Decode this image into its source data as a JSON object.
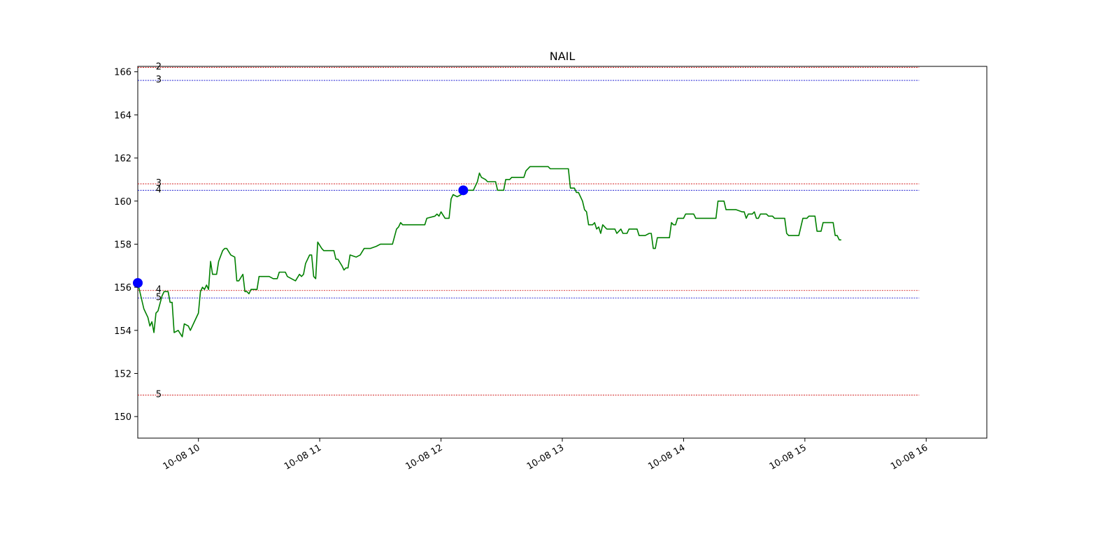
{
  "chart_data": {
    "type": "line",
    "title": "NAIL",
    "xlabel": "",
    "ylabel": "",
    "x_range": [
      "2023-10-08 09:30",
      "2023-10-08 16:30"
    ],
    "ylim": [
      149,
      166.25
    ],
    "y_ticks": [
      "150",
      "152",
      "154",
      "156",
      "158",
      "160",
      "162",
      "164",
      "166"
    ],
    "x_ticks": [
      {
        "t": "10:00",
        "label": "10-08 10"
      },
      {
        "t": "11:00",
        "label": "10-08 11"
      },
      {
        "t": "12:00",
        "label": "10-08 12"
      },
      {
        "t": "13:00",
        "label": "10-08 13"
      },
      {
        "t": "14:00",
        "label": "10-08 14"
      },
      {
        "t": "15:00",
        "label": "10-08 15"
      },
      {
        "t": "16:00",
        "label": "10-08 16"
      }
    ],
    "grid": false,
    "series": [
      {
        "color": "#008000",
        "points": [
          [
            "09:30",
            156.2
          ],
          [
            "09:33",
            155.0
          ],
          [
            "09:35",
            154.6
          ],
          [
            "09:36",
            154.2
          ],
          [
            "09:37",
            154.4
          ],
          [
            "09:38",
            153.9
          ],
          [
            "09:39",
            154.8
          ],
          [
            "09:40",
            154.9
          ],
          [
            "09:42",
            155.6
          ],
          [
            "09:43",
            155.8
          ],
          [
            "09:45",
            155.8
          ],
          [
            "09:46",
            155.3
          ],
          [
            "09:47",
            155.3
          ],
          [
            "09:48",
            153.9
          ],
          [
            "09:50",
            154.0
          ],
          [
            "09:52",
            153.7
          ],
          [
            "09:53",
            154.3
          ],
          [
            "09:55",
            154.2
          ],
          [
            "09:56",
            154.0
          ],
          [
            "09:58",
            154.4
          ],
          [
            "10:00",
            154.8
          ],
          [
            "10:01",
            155.8
          ],
          [
            "10:02",
            156.0
          ],
          [
            "10:03",
            155.9
          ],
          [
            "10:04",
            156.1
          ],
          [
            "10:05",
            155.9
          ],
          [
            "10:06",
            157.2
          ],
          [
            "10:07",
            156.6
          ],
          [
            "10:09",
            156.6
          ],
          [
            "10:10",
            157.2
          ],
          [
            "10:12",
            157.7
          ],
          [
            "10:13",
            157.8
          ],
          [
            "10:14",
            157.8
          ],
          [
            "10:16",
            157.5
          ],
          [
            "10:18",
            157.4
          ],
          [
            "10:19",
            156.3
          ],
          [
            "10:20",
            156.3
          ],
          [
            "10:22",
            156.6
          ],
          [
            "10:23",
            155.8
          ],
          [
            "10:24",
            155.8
          ],
          [
            "10:25",
            155.7
          ],
          [
            "10:26",
            155.9
          ],
          [
            "10:29",
            155.9
          ],
          [
            "10:30",
            156.5
          ],
          [
            "10:35",
            156.5
          ],
          [
            "10:37",
            156.4
          ],
          [
            "10:39",
            156.4
          ],
          [
            "10:40",
            156.7
          ],
          [
            "10:43",
            156.7
          ],
          [
            "10:44",
            156.5
          ],
          [
            "10:46",
            156.4
          ],
          [
            "10:48",
            156.3
          ],
          [
            "10:50",
            156.6
          ],
          [
            "10:51",
            156.5
          ],
          [
            "10:52",
            156.6
          ],
          [
            "10:53",
            157.1
          ],
          [
            "10:55",
            157.5
          ],
          [
            "10:56",
            157.5
          ],
          [
            "10:57",
            156.5
          ],
          [
            "10:58",
            156.4
          ],
          [
            "10:59",
            158.1
          ],
          [
            "11:01",
            157.8
          ],
          [
            "11:02",
            157.7
          ],
          [
            "11:05",
            157.7
          ],
          [
            "11:07",
            157.7
          ],
          [
            "11:08",
            157.3
          ],
          [
            "11:09",
            157.3
          ],
          [
            "11:11",
            157.0
          ],
          [
            "11:12",
            156.8
          ],
          [
            "11:13",
            156.9
          ],
          [
            "11:14",
            156.9
          ],
          [
            "11:15",
            157.5
          ],
          [
            "11:18",
            157.4
          ],
          [
            "11:20",
            157.5
          ],
          [
            "11:22",
            157.8
          ],
          [
            "11:24",
            157.8
          ],
          [
            "11:25",
            157.8
          ],
          [
            "11:28",
            157.9
          ],
          [
            "11:30",
            158.0
          ],
          [
            "11:36",
            158.0
          ],
          [
            "11:38",
            158.7
          ],
          [
            "11:39",
            158.8
          ],
          [
            "11:40",
            159.0
          ],
          [
            "11:41",
            158.9
          ],
          [
            "11:52",
            158.9
          ],
          [
            "11:53",
            159.2
          ],
          [
            "11:57",
            159.3
          ],
          [
            "11:58",
            159.4
          ],
          [
            "11:59",
            159.3
          ],
          [
            "12:00",
            159.5
          ],
          [
            "12:02",
            159.2
          ],
          [
            "12:04",
            159.2
          ],
          [
            "12:05",
            160.1
          ],
          [
            "12:06",
            160.3
          ],
          [
            "12:08",
            160.2
          ],
          [
            "12:10",
            160.3
          ],
          [
            "12:11",
            160.5
          ],
          [
            "12:13",
            160.5
          ],
          [
            "12:14",
            160.5
          ],
          [
            "12:16",
            160.5
          ],
          [
            "12:17",
            160.7
          ],
          [
            "12:18",
            160.9
          ],
          [
            "12:19",
            161.3
          ],
          [
            "12:20",
            161.1
          ],
          [
            "12:22",
            161.0
          ],
          [
            "12:23",
            160.9
          ],
          [
            "12:24",
            160.9
          ],
          [
            "12:27",
            160.9
          ],
          [
            "12:28",
            160.5
          ],
          [
            "12:31",
            160.5
          ],
          [
            "12:32",
            161.0
          ],
          [
            "12:34",
            161.0
          ],
          [
            "12:35",
            161.1
          ],
          [
            "12:41",
            161.1
          ],
          [
            "12:42",
            161.4
          ],
          [
            "12:44",
            161.6
          ],
          [
            "12:53",
            161.6
          ],
          [
            "12:54",
            161.5
          ],
          [
            "13:03",
            161.5
          ],
          [
            "13:04",
            160.6
          ],
          [
            "13:06",
            160.6
          ],
          [
            "13:07",
            160.4
          ],
          [
            "13:08",
            160.4
          ],
          [
            "13:10",
            160.0
          ],
          [
            "13:11",
            159.6
          ],
          [
            "13:12",
            159.5
          ],
          [
            "13:13",
            158.9
          ],
          [
            "13:15",
            158.9
          ],
          [
            "13:16",
            159.0
          ],
          [
            "13:17",
            158.7
          ],
          [
            "13:18",
            158.8
          ],
          [
            "13:19",
            158.5
          ],
          [
            "13:20",
            158.9
          ],
          [
            "13:21",
            158.8
          ],
          [
            "13:22",
            158.7
          ],
          [
            "13:26",
            158.7
          ],
          [
            "13:27",
            158.5
          ],
          [
            "13:28",
            158.6
          ],
          [
            "13:29",
            158.7
          ],
          [
            "13:30",
            158.5
          ],
          [
            "13:32",
            158.5
          ],
          [
            "13:33",
            158.7
          ],
          [
            "13:37",
            158.7
          ],
          [
            "13:38",
            158.4
          ],
          [
            "13:41",
            158.4
          ],
          [
            "13:43",
            158.5
          ],
          [
            "13:44",
            158.5
          ],
          [
            "13:45",
            157.8
          ],
          [
            "13:46",
            157.8
          ],
          [
            "13:47",
            158.3
          ],
          [
            "13:53",
            158.3
          ],
          [
            "13:54",
            159.0
          ],
          [
            "13:55",
            158.9
          ],
          [
            "13:56",
            158.9
          ],
          [
            "13:57",
            159.2
          ],
          [
            "14:00",
            159.2
          ],
          [
            "14:01",
            159.4
          ],
          [
            "14:05",
            159.4
          ],
          [
            "14:06",
            159.2
          ],
          [
            "14:11",
            159.2
          ],
          [
            "14:13",
            159.2
          ],
          [
            "14:16",
            159.2
          ],
          [
            "14:17",
            160.0
          ],
          [
            "14:20",
            160.0
          ],
          [
            "14:21",
            159.6
          ],
          [
            "14:26",
            159.6
          ],
          [
            "14:29",
            159.5
          ],
          [
            "14:30",
            159.5
          ],
          [
            "14:31",
            159.2
          ],
          [
            "14:32",
            159.4
          ],
          [
            "14:34",
            159.4
          ],
          [
            "14:35",
            159.5
          ],
          [
            "14:36",
            159.2
          ],
          [
            "14:37",
            159.2
          ],
          [
            "14:38",
            159.4
          ],
          [
            "14:41",
            159.4
          ],
          [
            "14:42",
            159.3
          ],
          [
            "14:44",
            159.3
          ],
          [
            "14:45",
            159.2
          ],
          [
            "14:49",
            159.2
          ],
          [
            "14:50",
            159.2
          ],
          [
            "14:51",
            158.5
          ],
          [
            "14:52",
            158.4
          ],
          [
            "14:57",
            158.4
          ],
          [
            "14:58",
            158.8
          ],
          [
            "14:59",
            159.2
          ],
          [
            "15:01",
            159.2
          ],
          [
            "15:02",
            159.3
          ],
          [
            "15:05",
            159.3
          ],
          [
            "15:06",
            158.6
          ],
          [
            "15:08",
            158.6
          ],
          [
            "15:09",
            159.0
          ],
          [
            "15:14",
            159.0
          ],
          [
            "15:15",
            158.4
          ],
          [
            "15:16",
            158.4
          ],
          [
            "15:17",
            158.2
          ],
          [
            "15:18",
            158.2
          ]
        ]
      }
    ],
    "markers": [
      {
        "t": "09:30",
        "y": 156.2,
        "color": "#0000ff"
      },
      {
        "t": "12:11",
        "y": 160.5,
        "color": "#0000ff"
      }
    ],
    "levels": [
      {
        "y": 166.2,
        "label": "2",
        "color": "#cc0000"
      },
      {
        "y": 165.6,
        "label": "3",
        "color": "#0000cc"
      },
      {
        "y": 160.8,
        "label": "3",
        "color": "#cc0000"
      },
      {
        "y": 160.5,
        "label": "4",
        "color": "#0000cc"
      },
      {
        "y": 155.85,
        "label": "4",
        "color": "#cc0000"
      },
      {
        "y": 155.5,
        "label": "5",
        "color": "#0000cc"
      },
      {
        "y": 151.0,
        "label": "5",
        "color": "#cc0000"
      }
    ]
  }
}
